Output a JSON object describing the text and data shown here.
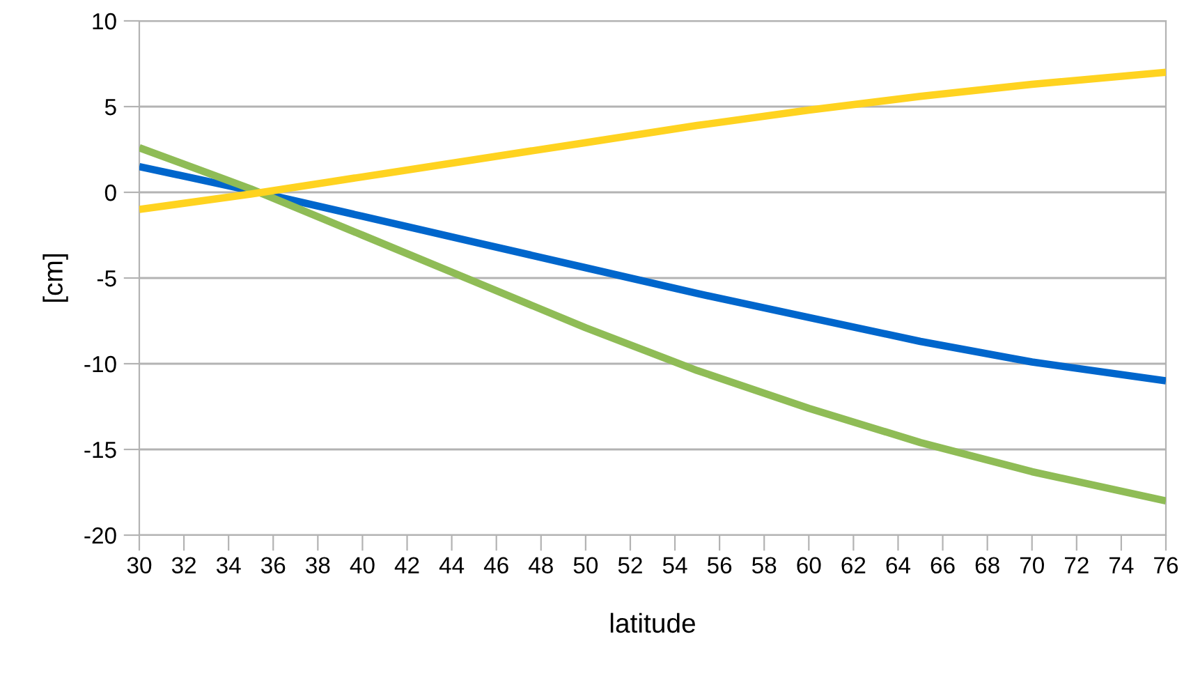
{
  "chart_data": {
    "type": "line",
    "xlabel": "latitude",
    "ylabel": "[cm]",
    "xlim": [
      30,
      76
    ],
    "ylim": [
      -20,
      10
    ],
    "xticks": [
      30,
      32,
      34,
      36,
      38,
      40,
      42,
      44,
      46,
      48,
      50,
      52,
      54,
      56,
      58,
      60,
      62,
      64,
      66,
      68,
      70,
      72,
      74,
      76
    ],
    "yticks": [
      -20,
      -15,
      -10,
      -5,
      0,
      5,
      10
    ],
    "grid": "y",
    "marker": "none",
    "line_style": "solid",
    "legend": false,
    "series": [
      {
        "color": "#0066cc",
        "x": [
          30,
          35,
          40,
          45,
          50,
          55,
          60,
          65,
          70,
          76
        ],
        "values": [
          1.5,
          0.1,
          -1.4,
          -2.9,
          -4.4,
          -5.9,
          -7.3,
          -8.7,
          -9.9,
          -11.0
        ]
      },
      {
        "color": "#8fbc56",
        "x": [
          30,
          35,
          40,
          45,
          50,
          55,
          60,
          65,
          70,
          76
        ],
        "values": [
          2.6,
          0.2,
          -2.5,
          -5.2,
          -7.9,
          -10.4,
          -12.6,
          -14.6,
          -16.3,
          -18.0
        ]
      },
      {
        "color": "#ffd320",
        "x": [
          30,
          35,
          40,
          45,
          50,
          55,
          60,
          65,
          70,
          76
        ],
        "values": [
          -1.0,
          -0.1,
          0.9,
          1.9,
          2.9,
          3.9,
          4.8,
          5.6,
          6.3,
          7.0
        ]
      }
    ]
  }
}
